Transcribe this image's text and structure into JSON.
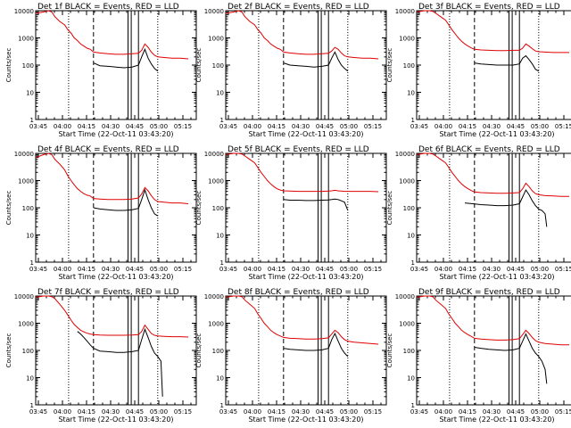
{
  "colors": {
    "black": "#000000",
    "red": "#e00000",
    "axis": "#000000"
  },
  "shared": {
    "xlabel": "Start Time (22-Oct-11 03:43:20)",
    "ylabel": "Counts/sec",
    "x_ticks": [
      "03:45",
      "04:00",
      "04:15",
      "04:30",
      "04:45",
      "05:00",
      "05:15"
    ],
    "y_ticks": [
      "1",
      "10",
      "100",
      "1000",
      "10000"
    ],
    "x_tick_minutes": [
      1.67,
      16.67,
      31.67,
      46.67,
      61.67,
      76.67,
      91.67
    ],
    "xlim_minutes_after_start": [
      0,
      100
    ],
    "ylim": [
      1,
      10000
    ],
    "y_scale": "log",
    "markers_minutes": {
      "dotted": [
        20.5,
        76
      ],
      "dashed": [
        36
      ],
      "solid": [
        57.5,
        59.5,
        64
      ]
    }
  },
  "chart_data": [
    {
      "type": "line",
      "title": "Det 1f BLACK = Events, RED = LLD",
      "series": [
        {
          "name": "Events",
          "color": "black",
          "x": [
            36,
            40,
            45,
            50,
            55,
            60,
            64,
            66,
            68,
            70,
            72,
            74,
            76
          ],
          "y": [
            120,
            95,
            90,
            85,
            80,
            85,
            100,
            200,
            380,
            180,
            110,
            75,
            60
          ]
        },
        {
          "name": "LLD",
          "color": "red",
          "x": [
            0,
            5,
            8,
            10,
            12,
            15,
            18,
            20,
            22,
            24,
            26,
            28,
            30,
            32,
            34,
            36,
            40,
            45,
            50,
            55,
            60,
            64,
            66,
            68,
            70,
            72,
            74,
            76,
            80,
            85,
            90,
            95
          ],
          "y": [
            8000,
            9000,
            10000,
            9000,
            6000,
            4000,
            3000,
            2000,
            1500,
            1000,
            800,
            600,
            500,
            420,
            380,
            300,
            280,
            260,
            250,
            250,
            260,
            270,
            350,
            600,
            450,
            300,
            230,
            200,
            190,
            180,
            180,
            170
          ]
        }
      ]
    },
    {
      "type": "line",
      "title": "Det 2f BLACK = Events, RED = LLD",
      "series": [
        {
          "name": "Events",
          "color": "black",
          "x": [
            36,
            40,
            45,
            50,
            55,
            60,
            64,
            66,
            68,
            70,
            72,
            74,
            76
          ],
          "y": [
            120,
            100,
            95,
            90,
            85,
            90,
            100,
            180,
            300,
            160,
            100,
            75,
            60
          ]
        },
        {
          "name": "LLD",
          "color": "red",
          "x": [
            0,
            5,
            8,
            10,
            12,
            15,
            18,
            20,
            22,
            24,
            26,
            28,
            30,
            32,
            34,
            36,
            40,
            45,
            50,
            55,
            60,
            64,
            66,
            68,
            70,
            72,
            74,
            76,
            80,
            85,
            90,
            95
          ],
          "y": [
            8000,
            9000,
            10000,
            9000,
            6000,
            4000,
            3000,
            2000,
            1500,
            1000,
            800,
            600,
            500,
            420,
            380,
            300,
            280,
            260,
            250,
            250,
            260,
            270,
            330,
            450,
            380,
            280,
            220,
            200,
            190,
            180,
            180,
            170
          ]
        }
      ]
    },
    {
      "type": "line",
      "title": "Det 3f BLACK = Events, RED = LLD",
      "series": [
        {
          "name": "Events",
          "color": "black",
          "x": [
            36,
            40,
            45,
            50,
            55,
            60,
            64,
            66,
            68,
            70,
            72,
            74,
            76
          ],
          "y": [
            120,
            110,
            105,
            100,
            100,
            100,
            110,
            180,
            220,
            160,
            110,
            70,
            60
          ]
        },
        {
          "name": "LLD",
          "color": "red",
          "x": [
            0,
            5,
            8,
            10,
            12,
            15,
            18,
            20,
            22,
            24,
            26,
            28,
            30,
            32,
            34,
            36,
            40,
            45,
            50,
            55,
            60,
            64,
            66,
            68,
            70,
            72,
            74,
            76,
            80,
            85,
            90,
            95
          ],
          "y": [
            9000,
            10000,
            10000,
            9500,
            8000,
            6000,
            4500,
            3000,
            2000,
            1400,
            1000,
            750,
            600,
            500,
            430,
            380,
            360,
            350,
            340,
            340,
            350,
            350,
            420,
            600,
            500,
            400,
            330,
            310,
            300,
            290,
            290,
            290
          ]
        }
      ]
    },
    {
      "type": "line",
      "title": "Det 4f BLACK = Events, RED = LLD",
      "series": [
        {
          "name": "Events",
          "color": "black",
          "x": [
            36,
            40,
            45,
            50,
            55,
            60,
            64,
            66,
            68,
            70,
            72,
            74,
            76
          ],
          "y": [
            100,
            90,
            85,
            80,
            80,
            85,
            95,
            200,
            450,
            200,
            100,
            60,
            50
          ]
        },
        {
          "name": "LLD",
          "color": "red",
          "x": [
            0,
            5,
            8,
            10,
            12,
            15,
            18,
            20,
            22,
            24,
            26,
            28,
            30,
            32,
            34,
            36,
            40,
            45,
            50,
            55,
            60,
            64,
            66,
            68,
            70,
            72,
            74,
            76,
            80,
            85,
            90,
            95
          ],
          "y": [
            7000,
            9000,
            10000,
            9000,
            6000,
            4000,
            2500,
            1500,
            1000,
            700,
            500,
            400,
            330,
            290,
            270,
            220,
            210,
            200,
            200,
            200,
            210,
            230,
            320,
            550,
            420,
            280,
            200,
            170,
            160,
            150,
            150,
            140
          ]
        }
      ]
    },
    {
      "type": "line",
      "title": "Det 5f BLACK = Events, RED = LLD",
      "series": [
        {
          "name": "Events",
          "color": "black",
          "x": [
            36,
            40,
            45,
            50,
            55,
            60,
            64,
            66,
            68,
            70,
            72,
            74,
            76
          ],
          "y": [
            200,
            190,
            190,
            185,
            185,
            190,
            195,
            200,
            210,
            200,
            180,
            160,
            80
          ]
        },
        {
          "name": "LLD",
          "color": "red",
          "x": [
            0,
            5,
            8,
            10,
            12,
            15,
            18,
            20,
            22,
            24,
            26,
            28,
            30,
            32,
            34,
            36,
            40,
            45,
            50,
            55,
            60,
            64,
            66,
            68,
            70,
            72,
            74,
            76,
            80,
            85,
            90,
            95
          ],
          "y": [
            9000,
            10000,
            10000,
            9500,
            8000,
            6000,
            4500,
            3000,
            2000,
            1400,
            1000,
            750,
            600,
            500,
            450,
            420,
            410,
            400,
            400,
            400,
            400,
            410,
            420,
            440,
            420,
            410,
            400,
            400,
            400,
            400,
            400,
            390
          ]
        }
      ]
    },
    {
      "type": "line",
      "title": "Det 6f BLACK = Events, RED = LLD",
      "series": [
        {
          "name": "Events",
          "color": "black",
          "x": [
            30,
            35,
            40,
            45,
            50,
            55,
            60,
            64,
            66,
            68,
            70,
            72,
            74,
            76,
            78,
            80,
            81
          ],
          "y": [
            150,
            140,
            130,
            125,
            120,
            120,
            125,
            140,
            250,
            450,
            300,
            180,
            120,
            90,
            80,
            60,
            20
          ]
        },
        {
          "name": "LLD",
          "color": "red",
          "x": [
            0,
            5,
            8,
            10,
            12,
            15,
            18,
            20,
            22,
            24,
            26,
            28,
            30,
            32,
            34,
            36,
            40,
            45,
            50,
            55,
            60,
            64,
            66,
            68,
            70,
            72,
            74,
            76,
            80,
            85,
            90,
            95
          ],
          "y": [
            9000,
            10000,
            10000,
            9500,
            8000,
            6000,
            4500,
            3000,
            2000,
            1400,
            1000,
            750,
            600,
            500,
            430,
            380,
            360,
            350,
            340,
            340,
            350,
            360,
            500,
            800,
            600,
            420,
            330,
            300,
            280,
            270,
            260,
            260
          ]
        }
      ]
    },
    {
      "type": "line",
      "title": "Det 7f BLACK = Events, RED = LLD",
      "series": [
        {
          "name": "Events",
          "color": "black",
          "x": [
            26,
            28,
            30,
            32,
            34,
            36,
            40,
            45,
            50,
            55,
            60,
            64,
            66,
            68,
            70,
            72,
            74,
            76,
            78,
            79
          ],
          "y": [
            500,
            400,
            300,
            220,
            160,
            120,
            95,
            90,
            85,
            85,
            90,
            100,
            250,
            600,
            300,
            140,
            80,
            60,
            40,
            2
          ]
        },
        {
          "name": "LLD",
          "color": "red",
          "x": [
            0,
            5,
            8,
            10,
            12,
            15,
            18,
            20,
            22,
            24,
            26,
            28,
            30,
            32,
            34,
            36,
            40,
            45,
            50,
            55,
            60,
            64,
            66,
            68,
            70,
            72,
            74,
            76,
            80,
            85,
            90,
            95
          ],
          "y": [
            9000,
            10000,
            10000,
            9500,
            8000,
            5000,
            3000,
            2000,
            1300,
            900,
            700,
            550,
            480,
            430,
            400,
            380,
            370,
            360,
            360,
            360,
            370,
            380,
            500,
            850,
            600,
            420,
            360,
            340,
            330,
            320,
            320,
            310
          ]
        }
      ]
    },
    {
      "type": "line",
      "title": "Det 8f BLACK = Events, RED = LLD",
      "series": [
        {
          "name": "Events",
          "color": "black",
          "x": [
            36,
            40,
            45,
            50,
            55,
            60,
            64,
            66,
            68,
            70,
            72,
            74,
            76
          ],
          "y": [
            120,
            110,
            105,
            100,
            100,
            105,
            120,
            250,
            420,
            220,
            120,
            80,
            60
          ]
        },
        {
          "name": "LLD",
          "color": "red",
          "x": [
            0,
            5,
            8,
            10,
            12,
            15,
            18,
            20,
            22,
            24,
            26,
            28,
            30,
            32,
            34,
            36,
            40,
            45,
            50,
            55,
            60,
            64,
            66,
            68,
            70,
            72,
            74,
            76,
            80,
            85,
            90,
            95
          ],
          "y": [
            9000,
            10000,
            10000,
            9500,
            7000,
            5000,
            3500,
            2200,
            1500,
            1000,
            750,
            550,
            450,
            380,
            340,
            300,
            280,
            270,
            260,
            260,
            270,
            290,
            400,
            550,
            450,
            320,
            250,
            220,
            200,
            190,
            180,
            170
          ]
        }
      ]
    },
    {
      "type": "line",
      "title": "Det 9f BLACK = Events, RED = LLD",
      "series": [
        {
          "name": "Events",
          "color": "black",
          "x": [
            36,
            40,
            45,
            50,
            55,
            60,
            64,
            66,
            68,
            70,
            72,
            74,
            76,
            78,
            80,
            81
          ],
          "y": [
            130,
            120,
            110,
            105,
            100,
            105,
            120,
            220,
            400,
            220,
            120,
            80,
            60,
            40,
            20,
            6
          ]
        },
        {
          "name": "LLD",
          "color": "red",
          "x": [
            0,
            5,
            8,
            10,
            12,
            15,
            18,
            20,
            22,
            24,
            26,
            28,
            30,
            32,
            34,
            36,
            40,
            45,
            50,
            55,
            60,
            64,
            66,
            68,
            70,
            72,
            74,
            76,
            80,
            85,
            90,
            95
          ],
          "y": [
            9000,
            10000,
            10000,
            9500,
            7000,
            5000,
            3500,
            2200,
            1500,
            1000,
            750,
            550,
            450,
            380,
            330,
            280,
            260,
            250,
            240,
            240,
            250,
            270,
            380,
            550,
            420,
            300,
            230,
            200,
            180,
            170,
            160,
            160
          ]
        }
      ]
    }
  ]
}
